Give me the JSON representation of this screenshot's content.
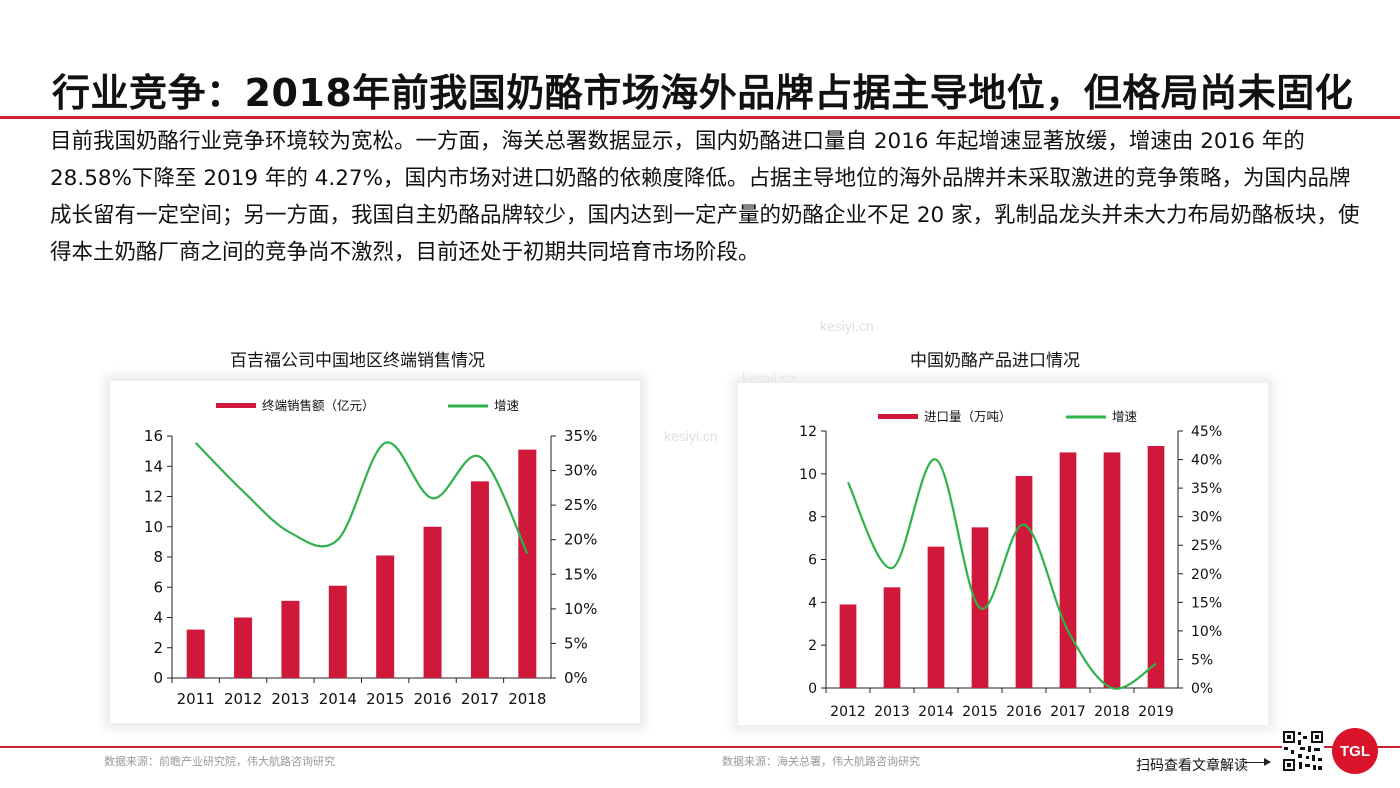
{
  "page": {
    "title": "行业竞争：2018年前我国奶酪市场海外品牌占据主导地位，但格局尚未固化",
    "paragraph": "目前我国奶酪行业竞争环境较为宽松。一方面，海关总署数据显示，国内奶酪进口量自 2016 年起增速显著放缓，增速由 2016 年的 28.58%下降至 2019 年的 4.27%，国内市场对进口奶酪的依赖度降低。占据主导地位的海外品牌并未采取激进的竞争策略，为国内品牌成长留有一定空间；另一方面，我国自主奶酪品牌较少，国内达到一定产量的奶酪企业不足 20 家，乳制品龙头并未大力布局奶酪板块，使得本土奶酪厂商之间的竞争尚不激烈，目前还处于初期共同培育市场阶段。",
    "source_left": "数据来源：前瞻产业研究院，伟大航路咨询研究",
    "source_right": "数据来源：海关总署，伟大航路咨询研究",
    "scan_text": "扫码查看文章解读",
    "logo_text": "TGL",
    "watermark": "kesiyi.cn",
    "colors": {
      "accent": "#cc1f33",
      "bar": "#d0183a",
      "line": "#2fb24a"
    }
  },
  "chart_data": [
    {
      "type": "bar",
      "title": "百吉福公司中国地区终端销售情况",
      "categories": [
        "2011",
        "2012",
        "2013",
        "2014",
        "2015",
        "2016",
        "2017",
        "2018"
      ],
      "series": [
        {
          "name": "终端销售额（亿元）",
          "axis": "left",
          "kind": "bar",
          "values": [
            3.2,
            4.0,
            5.1,
            6.1,
            8.1,
            10.0,
            13.0,
            15.1
          ]
        },
        {
          "name": "增速",
          "axis": "right",
          "kind": "line",
          "values": [
            34.0,
            27.0,
            21.0,
            20.0,
            34.0,
            26.0,
            32.0,
            18.0
          ]
        }
      ],
      "ylim": [
        0,
        16
      ],
      "yticks": [
        "0",
        "2",
        "4",
        "6",
        "8",
        "10",
        "12",
        "14",
        "16"
      ],
      "y2lim": [
        0,
        35
      ],
      "y2ticks": [
        "0%",
        "5%",
        "10%",
        "15%",
        "20%",
        "25%",
        "30%",
        "35%"
      ],
      "legend": "top"
    },
    {
      "type": "bar",
      "title": "中国奶酪产品进口情况",
      "categories": [
        "2012",
        "2013",
        "2014",
        "2015",
        "2016",
        "2017",
        "2018",
        "2019"
      ],
      "series": [
        {
          "name": "进口量（万吨）",
          "axis": "left",
          "kind": "bar",
          "values": [
            3.9,
            4.7,
            6.6,
            7.5,
            9.9,
            11.0,
            11.0,
            11.3
          ]
        },
        {
          "name": "增速",
          "axis": "right",
          "kind": "line",
          "values": [
            36.0,
            21.0,
            40.0,
            14.0,
            28.6,
            10.0,
            0.0,
            4.27
          ]
        }
      ],
      "ylim": [
        0,
        12
      ],
      "yticks": [
        "0",
        "2",
        "4",
        "6",
        "8",
        "10",
        "12"
      ],
      "y2lim": [
        0,
        45
      ],
      "y2ticks": [
        "0%",
        "5%",
        "10%",
        "15%",
        "20%",
        "25%",
        "30%",
        "35%",
        "40%",
        "45%"
      ],
      "legend": "top"
    }
  ]
}
